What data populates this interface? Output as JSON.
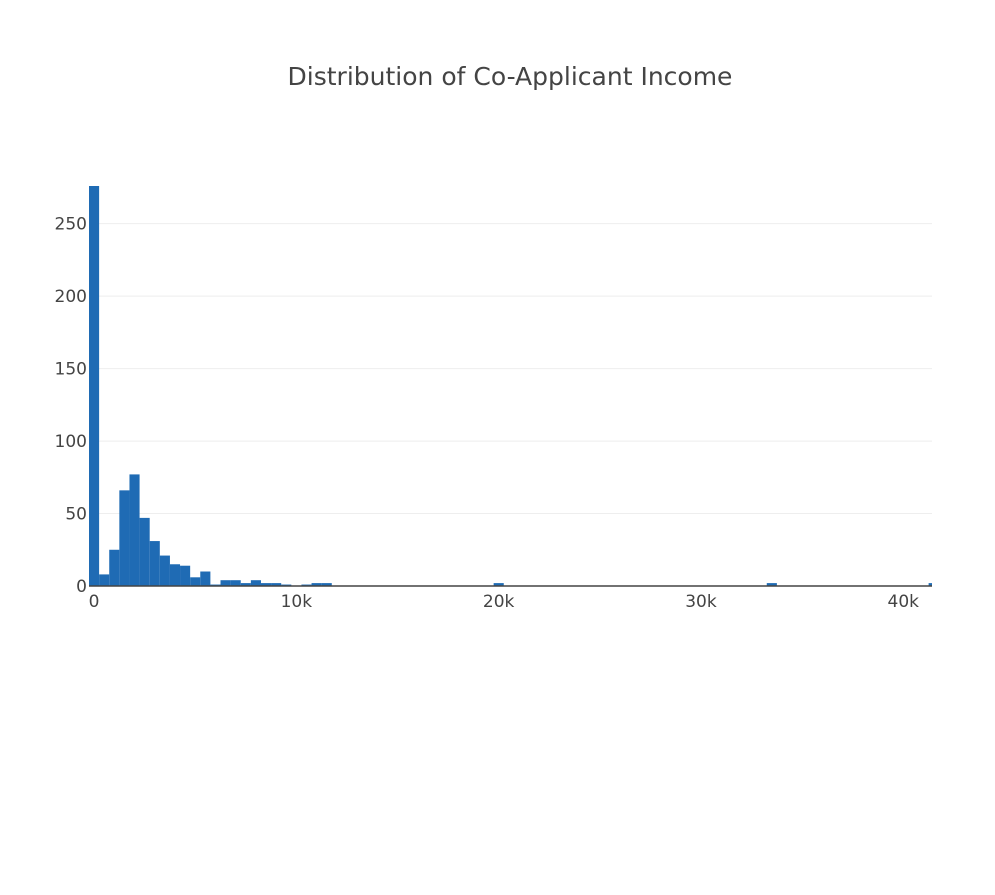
{
  "chart_data": {
    "type": "bar",
    "title": "Distribution of Co-Applicant Income",
    "xlabel": "",
    "ylabel": "",
    "bin_width": 500,
    "xlim": [
      0,
      41667
    ],
    "ylim": [
      0,
      276
    ],
    "x_tick_values": [
      0,
      10000,
      20000,
      30000,
      40000
    ],
    "x_tick_labels": [
      "0",
      "10k",
      "20k",
      "30k",
      "40k"
    ],
    "y_tick_values": [
      0,
      50,
      100,
      150,
      200,
      250
    ],
    "y_tick_labels": [
      "0",
      "50",
      "100",
      "150",
      "200",
      "250"
    ],
    "grid": true,
    "bar_color": "#1f6bb4",
    "bins": [
      {
        "x0": 0,
        "count": 276
      },
      {
        "x0": 500,
        "count": 8
      },
      {
        "x0": 1000,
        "count": 25
      },
      {
        "x0": 1500,
        "count": 66
      },
      {
        "x0": 2000,
        "count": 77
      },
      {
        "x0": 2500,
        "count": 47
      },
      {
        "x0": 3000,
        "count": 31
      },
      {
        "x0": 3500,
        "count": 21
      },
      {
        "x0": 4000,
        "count": 15
      },
      {
        "x0": 4500,
        "count": 14
      },
      {
        "x0": 5000,
        "count": 6
      },
      {
        "x0": 5500,
        "count": 10
      },
      {
        "x0": 6000,
        "count": 1
      },
      {
        "x0": 6500,
        "count": 4
      },
      {
        "x0": 7000,
        "count": 4
      },
      {
        "x0": 7500,
        "count": 2
      },
      {
        "x0": 8000,
        "count": 4
      },
      {
        "x0": 8500,
        "count": 2
      },
      {
        "x0": 9000,
        "count": 2
      },
      {
        "x0": 9500,
        "count": 1
      },
      {
        "x0": 10500,
        "count": 1
      },
      {
        "x0": 11000,
        "count": 2
      },
      {
        "x0": 11500,
        "count": 2
      },
      {
        "x0": 20000,
        "count": 2
      },
      {
        "x0": 33500,
        "count": 2
      },
      {
        "x0": 41500,
        "count": 2
      }
    ]
  }
}
